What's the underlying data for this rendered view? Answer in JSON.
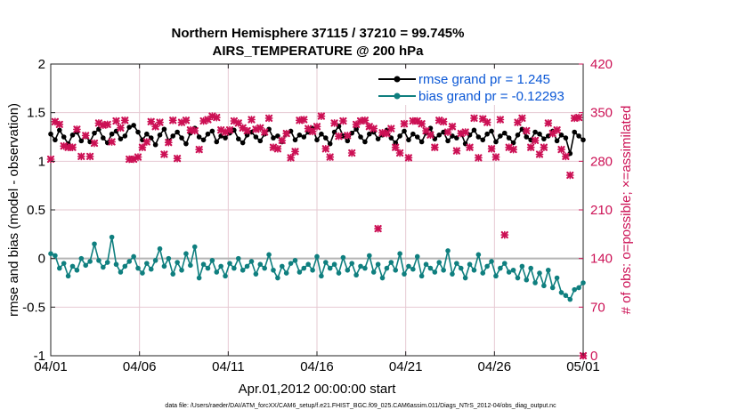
{
  "chart_data": {
    "type": "line",
    "title": "Northern Hemisphere 37115 / 37210 = 99.745%",
    "subtitle": "AIRS_TEMPERATURE @ 200 hPa",
    "xlabel": "Apr.01,2012 00:00:00 start",
    "ylabel_left": "rmse and bias (model - observation)",
    "ylabel_right": "# of obs: o=possible; ×=assimilated",
    "x_range_days": [
      0,
      30
    ],
    "x_tick_days": [
      0,
      5,
      10,
      15,
      20,
      25,
      30
    ],
    "x_tick_labels": [
      "04/01",
      "04/06",
      "04/11",
      "04/16",
      "04/21",
      "04/26",
      "05/01"
    ],
    "ylim_left": [
      -1,
      2
    ],
    "y_ticks_left": [
      -1,
      -0.5,
      0,
      0.5,
      1,
      1.5,
      2
    ],
    "y_tick_labels_left": [
      "-1",
      "-0.5",
      "0",
      "0.5",
      "1",
      "1.5",
      "2"
    ],
    "ylim_right": [
      0,
      420
    ],
    "y_ticks_right": [
      0,
      70,
      140,
      210,
      280,
      350,
      420
    ],
    "y_tick_labels_right": [
      "0",
      "70",
      "140",
      "210",
      "280",
      "350",
      "420"
    ],
    "legend": {
      "rmse": "rmse grand pr = 1.245",
      "bias": "bias grand pr = -0.12293",
      "location": "top-right"
    },
    "series": [
      {
        "name": "rmse",
        "color": "#000000",
        "marker": "circle",
        "values": [
          1.28,
          1.22,
          1.32,
          1.25,
          1.18,
          1.27,
          1.3,
          1.21,
          1.26,
          1.2,
          1.29,
          1.33,
          1.24,
          1.19,
          1.28,
          1.31,
          1.23,
          1.26,
          1.35,
          1.37,
          1.3,
          1.22,
          1.28,
          1.24,
          1.17,
          1.27,
          1.33,
          1.21,
          1.26,
          1.3,
          1.24,
          1.18,
          1.29,
          1.34,
          1.25,
          1.22,
          1.28,
          1.31,
          1.2,
          1.26,
          1.24,
          1.29,
          1.32,
          1.23,
          1.19,
          1.27,
          1.3,
          1.25,
          1.21,
          1.28,
          1.33,
          1.24,
          1.26,
          1.2,
          1.29,
          1.31,
          1.22,
          1.27,
          1.25,
          1.3,
          1.34,
          1.22,
          1.28,
          1.24,
          1.18,
          1.3,
          1.36,
          1.26,
          1.21,
          1.29,
          1.33,
          1.25,
          1.2,
          1.28,
          1.3,
          1.23,
          1.27,
          1.32,
          1.24,
          1.19,
          1.26,
          1.31,
          1.22,
          1.28,
          1.25,
          1.2,
          1.29,
          1.34,
          1.23,
          1.27,
          1.3,
          1.21,
          1.26,
          1.24,
          1.29,
          1.18,
          1.27,
          1.32,
          1.25,
          1.22,
          1.28,
          1.31,
          1.2,
          1.26,
          1.29,
          1.24,
          1.19,
          1.27,
          1.33,
          1.25,
          1.22,
          1.3,
          1.28,
          1.23,
          1.26,
          1.31,
          1.21,
          1.27,
          1.24,
          1.08,
          1.3,
          1.26,
          1.22
        ]
      },
      {
        "name": "bias",
        "color": "#0f7f7f",
        "marker": "circle",
        "values": [
          0.05,
          0.03,
          -0.1,
          -0.05,
          -0.18,
          -0.08,
          -0.12,
          0.0,
          -0.07,
          -0.03,
          0.15,
          -0.02,
          -0.09,
          -0.04,
          0.22,
          -0.06,
          -0.14,
          -0.08,
          -0.03,
          0.02,
          -0.1,
          -0.15,
          -0.05,
          -0.11,
          -0.02,
          0.1,
          -0.08,
          0.0,
          -0.16,
          -0.04,
          -0.12,
          0.05,
          -0.07,
          0.12,
          -0.2,
          -0.06,
          -0.1,
          -0.02,
          -0.14,
          -0.08,
          -0.18,
          -0.05,
          -0.1,
          0.0,
          -0.12,
          -0.08,
          -0.03,
          -0.16,
          -0.06,
          -0.1,
          0.04,
          -0.12,
          -0.2,
          -0.08,
          -0.15,
          -0.05,
          -0.02,
          -0.14,
          -0.1,
          -0.06,
          -0.12,
          0.02,
          -0.18,
          -0.04,
          -0.1,
          -0.06,
          -0.15,
          0.01,
          -0.12,
          -0.05,
          -0.17,
          -0.08,
          -0.1,
          0.03,
          -0.14,
          -0.06,
          -0.2,
          -0.1,
          -0.04,
          -0.12,
          0.05,
          -0.16,
          -0.08,
          -0.11,
          0.02,
          -0.18,
          -0.06,
          -0.1,
          -0.14,
          -0.04,
          -0.12,
          0.08,
          -0.16,
          -0.05,
          -0.1,
          -0.2,
          -0.06,
          -0.12,
          0.04,
          -0.15,
          -0.08,
          -0.03,
          -0.18,
          -0.1,
          -0.05,
          -0.14,
          -0.12,
          -0.2,
          -0.08,
          -0.22,
          -0.1,
          -0.25,
          -0.15,
          -0.28,
          -0.12,
          -0.3,
          -0.2,
          -0.35,
          -0.38,
          -0.42,
          -0.32,
          -0.3,
          -0.25
        ]
      },
      {
        "name": "obs_possible",
        "color": "#cc1155",
        "marker": "circle",
        "axis": "right",
        "values": [
          336,
          336,
          336,
          336,
          336,
          336,
          336,
          336,
          336,
          336,
          336,
          336,
          336,
          336,
          336,
          336,
          336,
          336,
          336,
          336,
          336,
          336,
          336,
          336,
          336,
          336,
          336,
          336,
          336,
          336,
          336,
          336,
          336,
          336,
          336,
          336,
          336,
          336,
          336,
          336,
          336,
          336,
          336,
          336,
          336,
          336,
          336,
          336,
          336,
          336,
          336,
          336,
          336,
          336,
          336,
          336,
          336,
          336,
          336,
          336,
          336,
          336,
          336,
          336,
          336,
          336,
          336,
          336,
          336,
          336,
          336,
          336,
          336,
          336,
          336,
          336,
          336,
          336,
          336,
          336,
          336,
          336,
          336,
          336,
          336,
          336,
          336,
          336,
          336,
          336,
          336,
          336,
          336,
          336,
          336,
          336,
          336,
          336,
          336,
          336,
          336,
          336,
          336,
          336,
          336,
          336,
          336,
          336,
          336,
          336,
          336,
          336,
          336,
          336,
          336,
          336,
          336,
          336,
          336,
          336,
          336,
          0
        ]
      },
      {
        "name": "obs_assimilated",
        "color": "#cc1155",
        "marker": "x",
        "axis": "right",
        "values": [
          283,
          337,
          333,
          302,
          300,
          300,
          326,
          287,
          317,
          287,
          306,
          335,
          332,
          333,
          308,
          338,
          328,
          339,
          283,
          283,
          286,
          300,
          308,
          337,
          330,
          336,
          290,
          307,
          339,
          284,
          336,
          339,
          325,
          324,
          297,
          338,
          340,
          345,
          343,
          325,
          322,
          325,
          338,
          335,
          328,
          324,
          340,
          326,
          328,
          322,
          342,
          300,
          298,
          310,
          320,
          285,
          294,
          339,
          340,
          327,
          323,
          330,
          345,
          298,
          286,
          335,
          316,
          338,
          317,
          292,
          333,
          338,
          339,
          330,
          327,
          183,
          321,
          320,
          327,
          300,
          292,
          334,
          285,
          338,
          338,
          334,
          324,
          318,
          300,
          339,
          337,
          322,
          330,
          295,
          320,
          322,
          300,
          342,
          285,
          341,
          336,
          298,
          286,
          340,
          174,
          300,
          297,
          336,
          342,
          324,
          300,
          310,
          290,
          300,
          335,
          320,
          325,
          297,
          287,
          260,
          342,
          343,
          0
        ]
      }
    ]
  },
  "footnote": "data file: /Users/raeder/DAI/ATM_forcXX/CAM6_setup/f.e21.FHIST_BGC.f09_025.CAM6assim.011/Diags_NTrS_2012-04/obs_diag_output.nc"
}
